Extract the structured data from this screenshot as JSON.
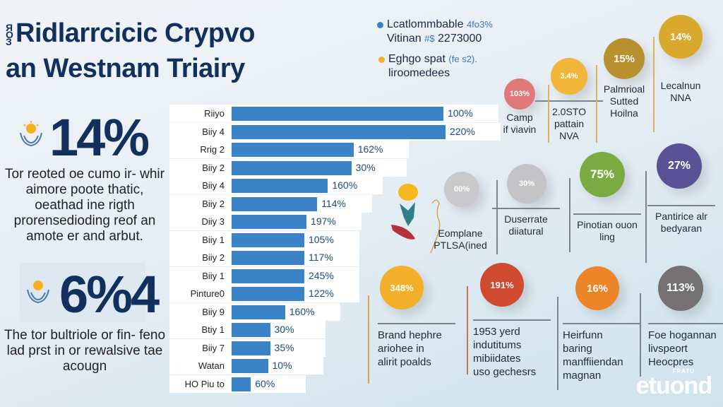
{
  "header": {
    "title_prefix": "ЯОЗ",
    "title_line1": "Ridlarrcicic Crypvo",
    "title_line2": "an Westnam Triairy"
  },
  "legend": [
    {
      "color": "#3c7fc0",
      "line1": "Lcatlommbable",
      "accent1": "4fo3%",
      "line2": "Vitinan",
      "accent2": "#$",
      "line2b": "2273000"
    },
    {
      "color": "#f0b030",
      "line1": "Eghgo spat",
      "accent1": "(fe s2).",
      "line2": "liroomedees",
      "accent2": "",
      "line2b": ""
    }
  ],
  "stats": [
    {
      "value": "14%",
      "text": "Tor reoted oe cumo ir- whir aimore poote thatic, oeathad ine rigth prorensedioding reof an amote er and arbut.",
      "icon": "sun-hands-icon"
    },
    {
      "value": "6%4",
      "text": "The tor bultriole or fin- feno lad prst in or rewalsive tae acougn",
      "icon": "sun-hands-icon"
    }
  ],
  "chart_data": {
    "type": "bar",
    "orientation": "horizontal",
    "categories": [
      "Riiyo",
      "Biiy 4",
      "Rrig 2",
      "Biiy 2",
      "Biiy 4",
      "Biiy 2",
      "Diiy 3",
      "Biiy 1",
      "Biiy 2",
      "Biiy 1",
      "Pinture0",
      "Biiy 9",
      "Btiy 1",
      "Biiy 7",
      "Watan",
      "HO Piu to"
    ],
    "value_labels": [
      "100%",
      "220%",
      "162%",
      "30%",
      "160%",
      "114%",
      "197%",
      "105%",
      "117%",
      "245%",
      "122%",
      "160%",
      "30%",
      "35%",
      "10%",
      "60%"
    ],
    "bar_length_percent": [
      99,
      100,
      57,
      56,
      45,
      40,
      35,
      34,
      34,
      34,
      34,
      25,
      18,
      18,
      17,
      9
    ],
    "bar_color": "#3a83c6",
    "grid": false
  },
  "circles": [
    {
      "value": "103%",
      "color": "#e07a7a",
      "caption": [
        "Camp",
        "if viavin"
      ]
    },
    {
      "value": "3.4%",
      "color": "#f1b63a",
      "caption": [
        "2.0STO",
        "pattain",
        "NVA"
      ]
    },
    {
      "value": "15%",
      "color": "#b8902e",
      "caption": [
        "Palmrioal",
        "Sutted",
        "Hoilna"
      ]
    },
    {
      "value": "14%",
      "color": "#d9a92e",
      "caption": [
        "Lecalnun",
        "NNA"
      ]
    },
    {
      "value": "00%",
      "color": "#c9c9cc",
      "caption": [
        "Eomplane",
        "PTLSA(ined"
      ]
    },
    {
      "value": "30%",
      "color": "#c4c4c7",
      "caption": [
        "Duserrate",
        "diiatural"
      ]
    },
    {
      "value": "75%",
      "color": "#7aab42",
      "caption": [
        "Pinotian ouon",
        "ling"
      ]
    },
    {
      "value": "27%",
      "color": "#5a5296",
      "caption": [
        "Pantirice alr",
        "bedyaran"
      ]
    },
    {
      "value": "348%",
      "color": "#f2b02a",
      "caption": [
        "Brand hephre",
        "ariohee in",
        "alirit poalds"
      ]
    },
    {
      "value": "191%",
      "color": "#cf4a2e",
      "caption": [
        "1953 yerd",
        "indutitums",
        "mibiidates",
        "uso gechesrs"
      ]
    },
    {
      "value": "16%",
      "color": "#ec8528",
      "caption": [
        "Heirfunn",
        "baring",
        "manffiiendan",
        "magnan"
      ]
    },
    {
      "value": "113%",
      "color": "#737171",
      "caption": [
        "Foe hogannan",
        "livspeort",
        "Heocpres"
      ]
    }
  ],
  "logo": {
    "text": "etuond",
    "small": "FRATU"
  }
}
